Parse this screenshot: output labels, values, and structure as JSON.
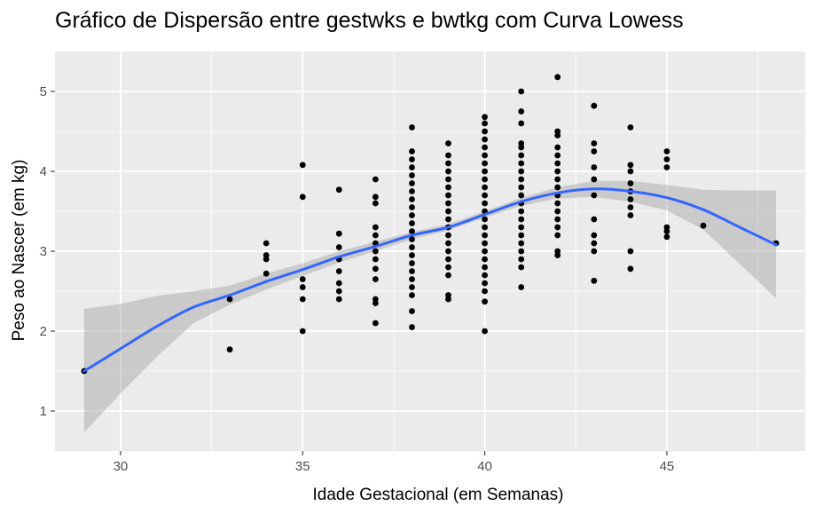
{
  "chart_data": {
    "type": "scatter",
    "title": "Gráfico de Dispersão entre gestwks e bwtkg com Curva Lowess",
    "xlabel": "Idade Gestacional (em Semanas)",
    "ylabel": "Peso ao Nascer (em kg)",
    "xlim": [
      28.2,
      48.8
    ],
    "ylim": [
      0.5,
      5.5
    ],
    "xticks": [
      30,
      35,
      40,
      45
    ],
    "yticks": [
      1,
      2,
      3,
      4,
      5
    ],
    "grid": true,
    "colors": {
      "panel": "#ebebeb",
      "grid_major": "#ffffff",
      "points": "#000000",
      "smooth_line": "#3366ff",
      "confidence_band": "#999999"
    },
    "points": [
      [
        29,
        1.5
      ],
      [
        33,
        2.4
      ],
      [
        33,
        1.77
      ],
      [
        34,
        3.1
      ],
      [
        34,
        2.95
      ],
      [
        34,
        2.9
      ],
      [
        34,
        2.72
      ],
      [
        35,
        4.08
      ],
      [
        35,
        3.68
      ],
      [
        35,
        2.65
      ],
      [
        35,
        2.55
      ],
      [
        35,
        2.4
      ],
      [
        35,
        2.0
      ],
      [
        36,
        3.77
      ],
      [
        36,
        3.22
      ],
      [
        36,
        3.05
      ],
      [
        36,
        2.9
      ],
      [
        36,
        2.75
      ],
      [
        36,
        2.6
      ],
      [
        36,
        2.5
      ],
      [
        36,
        2.4
      ],
      [
        37,
        3.9
      ],
      [
        37,
        3.68
      ],
      [
        37,
        3.6
      ],
      [
        37,
        3.3
      ],
      [
        37,
        3.2
      ],
      [
        37,
        3.1
      ],
      [
        37,
        3.0
      ],
      [
        37,
        2.9
      ],
      [
        37,
        2.78
      ],
      [
        37,
        2.65
      ],
      [
        37,
        2.4
      ],
      [
        37,
        2.35
      ],
      [
        37,
        2.1
      ],
      [
        38,
        4.55
      ],
      [
        38,
        4.25
      ],
      [
        38,
        4.15
      ],
      [
        38,
        4.05
      ],
      [
        38,
        3.95
      ],
      [
        38,
        3.85
      ],
      [
        38,
        3.75
      ],
      [
        38,
        3.65
      ],
      [
        38,
        3.55
      ],
      [
        38,
        3.45
      ],
      [
        38,
        3.35
      ],
      [
        38,
        3.25
      ],
      [
        38,
        3.15
      ],
      [
        38,
        3.05
      ],
      [
        38,
        2.95
      ],
      [
        38,
        2.85
      ],
      [
        38,
        2.75
      ],
      [
        38,
        2.65
      ],
      [
        38,
        2.55
      ],
      [
        38,
        2.45
      ],
      [
        38,
        2.25
      ],
      [
        38,
        2.05
      ],
      [
        39,
        4.35
      ],
      [
        39,
        4.2
      ],
      [
        39,
        4.1
      ],
      [
        39,
        4.0
      ],
      [
        39,
        3.9
      ],
      [
        39,
        3.8
      ],
      [
        39,
        3.7
      ],
      [
        39,
        3.6
      ],
      [
        39,
        3.5
      ],
      [
        39,
        3.4
      ],
      [
        39,
        3.3
      ],
      [
        39,
        3.2
      ],
      [
        39,
        3.1
      ],
      [
        39,
        3.0
      ],
      [
        39,
        2.9
      ],
      [
        39,
        2.8
      ],
      [
        39,
        2.7
      ],
      [
        39,
        2.45
      ],
      [
        39,
        2.4
      ],
      [
        40,
        4.68
      ],
      [
        40,
        4.6
      ],
      [
        40,
        4.5
      ],
      [
        40,
        4.4
      ],
      [
        40,
        4.3
      ],
      [
        40,
        4.2
      ],
      [
        40,
        4.1
      ],
      [
        40,
        4.0
      ],
      [
        40,
        3.9
      ],
      [
        40,
        3.8
      ],
      [
        40,
        3.7
      ],
      [
        40,
        3.6
      ],
      [
        40,
        3.5
      ],
      [
        40,
        3.4
      ],
      [
        40,
        3.3
      ],
      [
        40,
        3.2
      ],
      [
        40,
        3.1
      ],
      [
        40,
        3.0
      ],
      [
        40,
        2.9
      ],
      [
        40,
        2.8
      ],
      [
        40,
        2.7
      ],
      [
        40,
        2.6
      ],
      [
        40,
        2.5
      ],
      [
        40,
        2.37
      ],
      [
        40,
        2.0
      ],
      [
        41,
        5.0
      ],
      [
        41,
        4.75
      ],
      [
        41,
        4.6
      ],
      [
        41,
        4.35
      ],
      [
        41,
        4.3
      ],
      [
        41,
        4.2
      ],
      [
        41,
        4.1
      ],
      [
        41,
        4.0
      ],
      [
        41,
        3.9
      ],
      [
        41,
        3.8
      ],
      [
        41,
        3.7
      ],
      [
        41,
        3.6
      ],
      [
        41,
        3.5
      ],
      [
        41,
        3.4
      ],
      [
        41,
        3.3
      ],
      [
        41,
        3.2
      ],
      [
        41,
        3.1
      ],
      [
        41,
        3.0
      ],
      [
        41,
        2.9
      ],
      [
        41,
        2.8
      ],
      [
        41,
        2.55
      ],
      [
        42,
        5.18
      ],
      [
        42,
        4.5
      ],
      [
        42,
        4.45
      ],
      [
        42,
        4.3
      ],
      [
        42,
        4.2
      ],
      [
        42,
        4.1
      ],
      [
        42,
        4.0
      ],
      [
        42,
        3.9
      ],
      [
        42,
        3.8
      ],
      [
        42,
        3.7
      ],
      [
        42,
        3.6
      ],
      [
        42,
        3.5
      ],
      [
        42,
        3.4
      ],
      [
        42,
        3.3
      ],
      [
        42,
        3.2
      ],
      [
        42,
        3.0
      ],
      [
        42,
        2.95
      ],
      [
        43,
        4.82
      ],
      [
        43,
        4.35
      ],
      [
        43,
        4.25
      ],
      [
        43,
        4.05
      ],
      [
        43,
        3.9
      ],
      [
        43,
        3.7
      ],
      [
        43,
        3.4
      ],
      [
        43,
        3.2
      ],
      [
        43,
        3.1
      ],
      [
        43,
        3.0
      ],
      [
        43,
        2.63
      ],
      [
        44,
        4.55
      ],
      [
        44,
        4.08
      ],
      [
        44,
        4.0
      ],
      [
        44,
        3.85
      ],
      [
        44,
        3.75
      ],
      [
        44,
        3.65
      ],
      [
        44,
        3.55
      ],
      [
        44,
        3.45
      ],
      [
        44,
        3.0
      ],
      [
        44,
        2.78
      ],
      [
        45,
        4.25
      ],
      [
        45,
        4.15
      ],
      [
        45,
        4.05
      ],
      [
        45,
        3.3
      ],
      [
        45,
        3.25
      ],
      [
        45,
        3.18
      ],
      [
        46,
        3.32
      ],
      [
        48,
        3.1
      ]
    ],
    "lowess": [
      [
        29,
        1.5
      ],
      [
        30,
        1.78
      ],
      [
        31,
        2.06
      ],
      [
        32,
        2.3
      ],
      [
        33,
        2.45
      ],
      [
        34,
        2.62
      ],
      [
        35,
        2.77
      ],
      [
        36,
        2.93
      ],
      [
        37,
        3.06
      ],
      [
        38,
        3.2
      ],
      [
        39,
        3.3
      ],
      [
        40,
        3.46
      ],
      [
        41,
        3.62
      ],
      [
        42,
        3.73
      ],
      [
        43,
        3.78
      ],
      [
        44,
        3.75
      ],
      [
        45,
        3.67
      ],
      [
        46,
        3.52
      ],
      [
        47,
        3.3
      ],
      [
        48,
        3.08
      ]
    ],
    "lowess_band": {
      "x": [
        29,
        30,
        31,
        32,
        33,
        34,
        35,
        36,
        37,
        38,
        39,
        40,
        41,
        42,
        43,
        44,
        45,
        46,
        47,
        48
      ],
      "upper": [
        2.28,
        2.34,
        2.44,
        2.5,
        2.57,
        2.72,
        2.85,
        3.0,
        3.12,
        3.24,
        3.34,
        3.5,
        3.67,
        3.8,
        3.88,
        3.88,
        3.83,
        3.77,
        3.76,
        3.76
      ],
      "lower": [
        0.73,
        1.22,
        1.68,
        2.1,
        2.33,
        2.52,
        2.69,
        2.86,
        3.0,
        3.15,
        3.26,
        3.42,
        3.57,
        3.66,
        3.68,
        3.62,
        3.51,
        3.27,
        2.84,
        2.41
      ]
    }
  }
}
